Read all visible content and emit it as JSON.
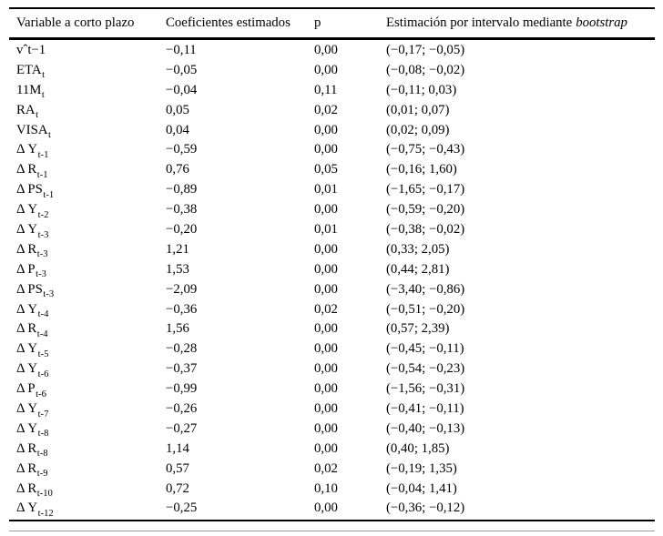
{
  "table": {
    "headers": {
      "variable": "Variable a corto plazo",
      "coef": "Coeficientes estimados",
      "p": "p",
      "interval_prefix": "Estimación por intervalo mediante",
      "interval_italic": "bootstrap"
    },
    "rows": [
      {
        "base": "vˆt−1",
        "sub": "",
        "coef": "−0,11",
        "p": "0,00",
        "interval": "(−0,17; −0,05)"
      },
      {
        "base": "ETA",
        "sub": "t",
        "coef": "−0,05",
        "p": "0,00",
        "interval": "(−0,08; −0,02)"
      },
      {
        "base": "11M",
        "sub": "t",
        "coef": "−0,04",
        "p": "0,11",
        "interval": "(−0,11; 0,03)"
      },
      {
        "base": "RA",
        "sub": "t",
        "coef": "0,05",
        "p": "0,02",
        "interval": "(0,01; 0,07)"
      },
      {
        "base": "VISA",
        "sub": "t",
        "coef": "0,04",
        "p": "0,00",
        "interval": "(0,02; 0,09)"
      },
      {
        "base": "Δ Y",
        "sub": "t-1",
        "coef": "−0,59",
        "p": "0,00",
        "interval": "(−0,75; −0,43)"
      },
      {
        "base": "Δ R",
        "sub": "t-1",
        "coef": "0,76",
        "p": "0,05",
        "interval": "(−0,16; 1,60)"
      },
      {
        "base": "Δ PS",
        "sub": "t-1",
        "coef": "−0,89",
        "p": "0,01",
        "interval": "(−1,65; −0,17)"
      },
      {
        "base": "Δ Y",
        "sub": "t-2",
        "coef": "−0,38",
        "p": "0,00",
        "interval": "(−0,59; −0,20)"
      },
      {
        "base": "Δ Y",
        "sub": "t-3",
        "coef": "−0,20",
        "p": "0,01",
        "interval": "(−0,38; −0,02)"
      },
      {
        "base": "Δ R",
        "sub": "t-3",
        "coef": "1,21",
        "p": "0,00",
        "interval": "(0,33; 2,05)"
      },
      {
        "base": "Δ P",
        "sub": "t-3",
        "coef": "1,53",
        "p": "0,00",
        "interval": "(0,44; 2,81)"
      },
      {
        "base": "Δ PS",
        "sub": "t-3",
        "coef": "−2,09",
        "p": "0,00",
        "interval": "(−3,40; −0,86)"
      },
      {
        "base": "Δ Y",
        "sub": "t-4",
        "coef": "−0,36",
        "p": "0,02",
        "interval": "(−0,51; −0,20)"
      },
      {
        "base": "Δ R",
        "sub": "t-4",
        "coef": "1,56",
        "p": "0,00",
        "interval": "(0,57; 2,39)"
      },
      {
        "base": "Δ Y",
        "sub": "t-5",
        "coef": "−0,28",
        "p": "0,00",
        "interval": "(−0,45; −0,11)"
      },
      {
        "base": "Δ Y",
        "sub": "t-6",
        "coef": "−0,37",
        "p": "0,00",
        "interval": "(−0,54; −0,23)"
      },
      {
        "base": "Δ P",
        "sub": "t-6",
        "coef": "−0,99",
        "p": "0,00",
        "interval": "(−1,56; −0,31)"
      },
      {
        "base": "Δ Y",
        "sub": "t-7",
        "coef": "−0,26",
        "p": "0,00",
        "interval": "(−0,41; −0,11)"
      },
      {
        "base": "Δ Y",
        "sub": "t-8",
        "coef": "−0,27",
        "p": "0,00",
        "interval": "(−0,40; −0,13)"
      },
      {
        "base": "Δ R",
        "sub": "t-8",
        "coef": "1,14",
        "p": "0,00",
        "interval": "(0,40; 1,85)"
      },
      {
        "base": "Δ R",
        "sub": "t-9",
        "coef": "0,57",
        "p": "0,02",
        "interval": "(−0,19; 1,35)"
      },
      {
        "base": "Δ R",
        "sub": "t-10",
        "coef": "0,72",
        "p": "0,10",
        "interval": "(−0,04; 1,41)"
      },
      {
        "base": "Δ Y",
        "sub": "t-12",
        "coef": "−0,25",
        "p": "0,00",
        "interval": "(−0,36; −0,12)"
      }
    ]
  }
}
